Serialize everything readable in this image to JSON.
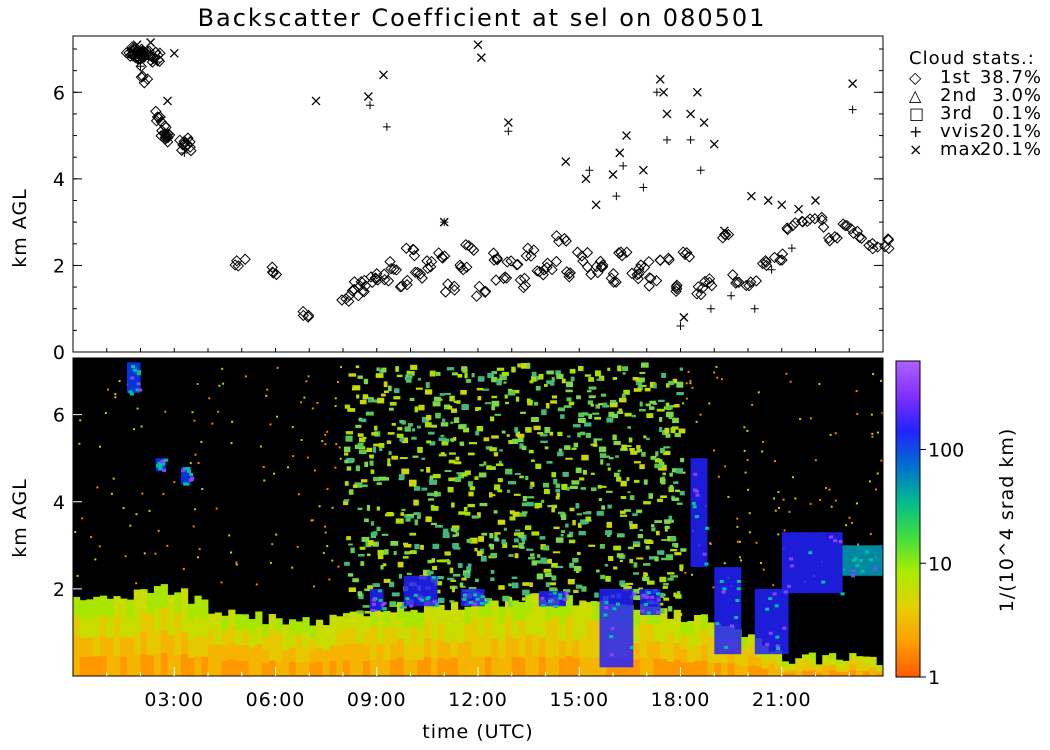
{
  "title": "Backscatter Coefficient at sel on 080501",
  "x_axis": {
    "label": "time (UTC)",
    "ticks": [
      "03:00",
      "06:00",
      "09:00",
      "12:00",
      "15:00",
      "18:00",
      "21:00"
    ],
    "tick_hours": [
      3,
      6,
      9,
      12,
      15,
      18,
      21
    ],
    "range_hours": [
      0,
      24
    ]
  },
  "chart_data": [
    {
      "type": "scatter",
      "name": "cloud-height-panel",
      "ylabel": "km AGL",
      "yticks": [
        "0",
        "2",
        "4",
        "6"
      ],
      "ylim": [
        0,
        7.3
      ],
      "xlim_hours": [
        0,
        24
      ],
      "legend": {
        "title": "Cloud stats.:",
        "position": "right",
        "entries": [
          {
            "symbol": "◇",
            "label": "1st",
            "value": "38.7%"
          },
          {
            "symbol": "△",
            "label": "2nd",
            "value": "3.0%"
          },
          {
            "symbol": "□",
            "label": "3rd",
            "value": "0.1%"
          },
          {
            "symbol": "+",
            "label": "vvis",
            "value": "20.1%"
          },
          {
            "symbol": "×",
            "label": "max",
            "value": "20.1%"
          }
        ]
      },
      "series": [
        {
          "name": "1st",
          "marker": "diamond",
          "x_hours": [
            1.7,
            1.75,
            1.8,
            1.85,
            1.9,
            1.95,
            2.0,
            2.05,
            2.1,
            2.2,
            2.3,
            2.4,
            2.5,
            2.6,
            2.65,
            2.7,
            2.75,
            2.8,
            3.3,
            3.35,
            3.4,
            4.95,
            6.0,
            6.9,
            8.1,
            8.3,
            8.5,
            8.7,
            8.9,
            9.2,
            9.5,
            9.8,
            10.0,
            10.3,
            10.6,
            10.9,
            11.2,
            11.5,
            11.8,
            12.1,
            12.4,
            12.7,
            13.0,
            13.3,
            13.6,
            13.9,
            14.2,
            14.5,
            14.8,
            15.1,
            15.4,
            15.7,
            16.0,
            16.3,
            16.6,
            16.9,
            17.2,
            17.5,
            17.8,
            18.1,
            18.5,
            18.9,
            19.3,
            19.7,
            20.1,
            20.5,
            20.9,
            21.3,
            21.7,
            22.1,
            22.5,
            22.9,
            23.3,
            23.7,
            24.0
          ],
          "y_km": [
            7.0,
            6.95,
            6.9,
            6.85,
            6.8,
            6.85,
            6.9,
            6.7,
            6.3,
            6.9,
            6.95,
            6.9,
            6.8,
            5.5,
            5.3,
            5.0,
            4.95,
            5.0,
            4.9,
            4.75,
            4.7,
            2.1,
            1.9,
            0.85,
            1.2,
            1.4,
            1.6,
            1.5,
            1.8,
            1.7,
            2.0,
            1.6,
            2.3,
            1.8,
            2.0,
            2.2,
            1.5,
            2.0,
            2.4,
            1.4,
            2.2,
            1.7,
            2.0,
            1.6,
            2.3,
            1.8,
            2.0,
            2.6,
            1.8,
            2.2,
            1.9,
            2.0,
            1.7,
            2.3,
            1.8,
            2.0,
            1.6,
            2.1,
            1.5,
            2.2,
            1.4,
            1.6,
            2.6,
            1.7,
            1.6,
            2.0,
            2.2,
            2.9,
            3.1,
            3.0,
            2.6,
            2.9,
            2.7,
            2.5,
            2.5
          ]
        },
        {
          "name": "vvis",
          "marker": "plus",
          "x_hours": [
            2.0,
            2.5,
            3.3,
            8.8,
            9.3,
            11.0,
            12.9,
            15.3,
            16.1,
            16.3,
            16.9,
            17.3,
            17.6,
            18.0,
            18.3,
            18.6,
            18.9,
            19.5,
            20.2,
            20.7,
            21.3,
            23.1
          ],
          "y_km": [
            6.6,
            6.7,
            4.6,
            5.7,
            5.2,
            3.0,
            5.1,
            4.2,
            3.6,
            4.3,
            3.8,
            6.0,
            4.9,
            0.6,
            4.9,
            4.2,
            1.0,
            1.3,
            1.0,
            1.9,
            2.4,
            5.6
          ]
        },
        {
          "name": "max",
          "marker": "x",
          "x_hours": [
            1.9,
            2.3,
            2.4,
            2.8,
            3.0,
            3.4,
            7.2,
            8.75,
            9.2,
            11.0,
            12.0,
            12.1,
            12.9,
            14.6,
            15.2,
            15.5,
            16.0,
            16.2,
            16.4,
            16.9,
            17.4,
            17.5,
            17.6,
            18.1,
            18.3,
            18.5,
            18.7,
            19.0,
            19.3,
            20.1,
            20.6,
            21.0,
            21.5,
            22.0,
            23.1
          ],
          "y_km": [
            7.1,
            7.15,
            6.7,
            5.8,
            6.9,
            4.9,
            5.8,
            5.9,
            6.4,
            3.0,
            7.1,
            6.8,
            5.3,
            4.4,
            4.0,
            3.4,
            4.1,
            4.6,
            5.0,
            4.2,
            6.3,
            6.0,
            5.5,
            0.8,
            5.5,
            6.0,
            5.3,
            4.8,
            2.8,
            3.6,
            3.5,
            3.4,
            3.3,
            3.5,
            6.2
          ]
        }
      ]
    },
    {
      "type": "heatmap",
      "name": "backscatter-panel",
      "ylabel": "km AGL",
      "yticks": [
        "2",
        "4",
        "6"
      ],
      "ylim": [
        0,
        7.3
      ],
      "xlim_hours": [
        0,
        24
      ],
      "colorbar": {
        "label": "1/(10^4 srad km)",
        "scale": "log",
        "range": [
          1,
          600
        ],
        "ticks": [
          "1",
          "10",
          "100"
        ],
        "colors": [
          "#ff5a00",
          "#ff9e00",
          "#e5d000",
          "#a8ee00",
          "#40dd40",
          "#00bb90",
          "#0070d0",
          "#2222ff",
          "#8030ff",
          "#b060ff"
        ]
      },
      "boundary_layer_top_km": [
        1.7,
        1.7,
        1.9,
        2.0,
        1.6,
        1.4,
        1.3,
        1.3,
        1.3,
        1.5,
        1.6,
        1.6,
        1.7,
        1.7,
        1.8,
        1.7,
        1.7,
        1.5,
        1.4,
        1.3,
        1.0,
        0.4,
        0.4,
        0.4,
        0.4
      ],
      "cloud_layers": [
        {
          "x_start": 1.6,
          "x_end": 2.0,
          "y_bottom": 6.5,
          "y_top": 7.2,
          "color": "#0040ff"
        },
        {
          "x_start": 2.45,
          "x_end": 2.75,
          "y_bottom": 4.7,
          "y_top": 5.0,
          "color": "#0040ff"
        },
        {
          "x_start": 3.2,
          "x_end": 3.5,
          "y_bottom": 4.4,
          "y_top": 4.8,
          "color": "#0040ff"
        },
        {
          "x_start": 8.8,
          "x_end": 9.2,
          "y_bottom": 1.5,
          "y_top": 2.0,
          "color": "#2222ff"
        },
        {
          "x_start": 9.8,
          "x_end": 10.8,
          "y_bottom": 1.6,
          "y_top": 2.3,
          "color": "#2222ff"
        },
        {
          "x_start": 11.5,
          "x_end": 12.2,
          "y_bottom": 1.6,
          "y_top": 2.0,
          "color": "#2222ff"
        },
        {
          "x_start": 13.8,
          "x_end": 14.6,
          "y_bottom": 1.6,
          "y_top": 1.95,
          "color": "#2222ff"
        },
        {
          "x_start": 15.6,
          "x_end": 16.6,
          "y_bottom": 0.2,
          "y_top": 2.0,
          "color": "#2222ff"
        },
        {
          "x_start": 16.8,
          "x_end": 17.4,
          "y_bottom": 1.4,
          "y_top": 2.0,
          "color": "#2222ff"
        },
        {
          "x_start": 18.3,
          "x_end": 18.8,
          "y_bottom": 2.5,
          "y_top": 5.0,
          "color": "#2222ff"
        },
        {
          "x_start": 19.0,
          "x_end": 19.8,
          "y_bottom": 0.5,
          "y_top": 2.5,
          "color": "#2222ff"
        },
        {
          "x_start": 20.2,
          "x_end": 21.2,
          "y_bottom": 0.5,
          "y_top": 2.0,
          "color": "#2222ff"
        },
        {
          "x_start": 21.0,
          "x_end": 22.8,
          "y_bottom": 1.9,
          "y_top": 3.3,
          "color": "#2222ff"
        },
        {
          "x_start": 22.8,
          "x_end": 24.0,
          "y_bottom": 2.3,
          "y_top": 3.0,
          "color": "#00a0c0"
        }
      ]
    }
  ]
}
